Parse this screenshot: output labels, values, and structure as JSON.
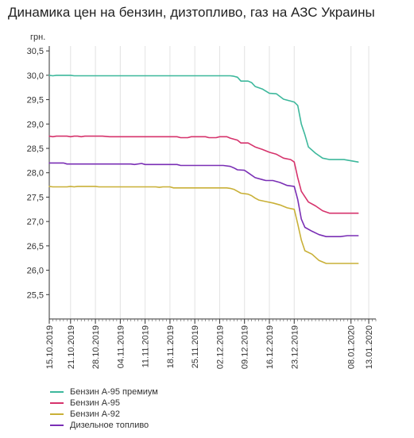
{
  "page": {
    "title": "Динамика цен на бензин, дизтопливо, газ на АЗС Украины"
  },
  "chart_data": {
    "type": "line",
    "title": "Динамика цен на бензин, дизтопливо, газ на АЗС Украины",
    "ylabel": "грн.",
    "xlabel": "",
    "ylim": [
      25.0,
      30.6
    ],
    "yticks": [
      "25,5",
      "26,0",
      "26,5",
      "27,0",
      "27,5",
      "28,0",
      "28,5",
      "29,0",
      "29,5",
      "30,0",
      "30,5"
    ],
    "xlim": [
      "2019-10-15",
      "2020-01-15"
    ],
    "xticks": [
      "15.10.2019",
      "21.10.2019",
      "28.10.2019",
      "04.11.2019",
      "11.11.2019",
      "18.11.2019",
      "25.11.2019",
      "02.12.2019",
      "09.12.2019",
      "16.12.2019",
      "23.12.2019",
      "08.01.2020",
      "13.01.2020"
    ],
    "grid": {
      "vertical": true,
      "horizontal": false
    },
    "legend_position": "bottom-left",
    "series": [
      {
        "name": "Бензин А-95 премиум",
        "color": "#3db89c",
        "points": [
          [
            "2019-10-15",
            30.0
          ],
          [
            "2019-10-16",
            29.99
          ],
          [
            "2019-10-17",
            30.0
          ],
          [
            "2019-10-21",
            30.0
          ],
          [
            "2019-10-22",
            29.99
          ],
          [
            "2019-11-20",
            29.99
          ],
          [
            "2019-12-05",
            29.99
          ],
          [
            "2019-12-06",
            29.98
          ],
          [
            "2019-12-07",
            29.96
          ],
          [
            "2019-12-08",
            29.88
          ],
          [
            "2019-12-10",
            29.88
          ],
          [
            "2019-12-11",
            29.85
          ],
          [
            "2019-12-12",
            29.77
          ],
          [
            "2019-12-14",
            29.72
          ],
          [
            "2019-12-16",
            29.63
          ],
          [
            "2019-12-18",
            29.62
          ],
          [
            "2019-12-20",
            29.51
          ],
          [
            "2019-12-22",
            29.47
          ],
          [
            "2019-12-23",
            29.45
          ],
          [
            "2019-12-24",
            29.38
          ],
          [
            "2019-12-25",
            29.0
          ],
          [
            "2019-12-26",
            28.78
          ],
          [
            "2019-12-27",
            28.53
          ],
          [
            "2019-12-29",
            28.4
          ],
          [
            "2019-12-31",
            28.3
          ],
          [
            "2020-01-02",
            28.27
          ],
          [
            "2020-01-06",
            28.27
          ],
          [
            "2020-01-10",
            28.22
          ]
        ]
      },
      {
        "name": "Бензин А-95",
        "color": "#d6336c",
        "points": [
          [
            "2019-10-15",
            28.75
          ],
          [
            "2019-10-16",
            28.74
          ],
          [
            "2019-10-17",
            28.75
          ],
          [
            "2019-10-20",
            28.75
          ],
          [
            "2019-10-21",
            28.74
          ],
          [
            "2019-10-22",
            28.75
          ],
          [
            "2019-10-23",
            28.75
          ],
          [
            "2019-10-24",
            28.74
          ],
          [
            "2019-10-25",
            28.75
          ],
          [
            "2019-10-30",
            28.75
          ],
          [
            "2019-11-01",
            28.74
          ],
          [
            "2019-11-20",
            28.74
          ],
          [
            "2019-11-21",
            28.72
          ],
          [
            "2019-11-23",
            28.72
          ],
          [
            "2019-11-24",
            28.74
          ],
          [
            "2019-11-28",
            28.74
          ],
          [
            "2019-11-29",
            28.72
          ],
          [
            "2019-12-01",
            28.72
          ],
          [
            "2019-12-02",
            28.74
          ],
          [
            "2019-12-04",
            28.74
          ],
          [
            "2019-12-05",
            28.71
          ],
          [
            "2019-12-07",
            28.67
          ],
          [
            "2019-12-08",
            28.61
          ],
          [
            "2019-12-10",
            28.61
          ],
          [
            "2019-12-12",
            28.53
          ],
          [
            "2019-12-14",
            28.48
          ],
          [
            "2019-12-16",
            28.42
          ],
          [
            "2019-12-18",
            28.38
          ],
          [
            "2019-12-20",
            28.3
          ],
          [
            "2019-12-22",
            28.27
          ],
          [
            "2019-12-23",
            28.22
          ],
          [
            "2019-12-24",
            27.9
          ],
          [
            "2019-12-25",
            27.62
          ],
          [
            "2019-12-27",
            27.4
          ],
          [
            "2019-12-29",
            27.32
          ],
          [
            "2019-12-31",
            27.22
          ],
          [
            "2020-01-02",
            27.17
          ],
          [
            "2020-01-10",
            27.17
          ]
        ]
      },
      {
        "name": "Бензин А-92",
        "color": "#c9b037",
        "points": [
          [
            "2019-10-15",
            27.72
          ],
          [
            "2019-10-16",
            27.71
          ],
          [
            "2019-10-20",
            27.71
          ],
          [
            "2019-10-21",
            27.72
          ],
          [
            "2019-10-22",
            27.71
          ],
          [
            "2019-10-23",
            27.72
          ],
          [
            "2019-10-28",
            27.72
          ],
          [
            "2019-10-29",
            27.71
          ],
          [
            "2019-11-14",
            27.71
          ],
          [
            "2019-11-15",
            27.7
          ],
          [
            "2019-11-16",
            27.71
          ],
          [
            "2019-11-18",
            27.71
          ],
          [
            "2019-11-19",
            27.69
          ],
          [
            "2019-12-04",
            27.69
          ],
          [
            "2019-12-05",
            27.68
          ],
          [
            "2019-12-06",
            27.66
          ],
          [
            "2019-12-07",
            27.62
          ],
          [
            "2019-12-08",
            27.58
          ],
          [
            "2019-12-10",
            27.56
          ],
          [
            "2019-12-11",
            27.53
          ],
          [
            "2019-12-12",
            27.48
          ],
          [
            "2019-12-13",
            27.44
          ],
          [
            "2019-12-15",
            27.41
          ],
          [
            "2019-12-17",
            27.38
          ],
          [
            "2019-12-19",
            27.34
          ],
          [
            "2019-12-21",
            27.28
          ],
          [
            "2019-12-23",
            27.25
          ],
          [
            "2019-12-24",
            26.95
          ],
          [
            "2019-12-25",
            26.62
          ],
          [
            "2019-12-26",
            26.4
          ],
          [
            "2019-12-28",
            26.33
          ],
          [
            "2019-12-30",
            26.2
          ],
          [
            "2020-01-01",
            26.14
          ],
          [
            "2020-01-10",
            26.14
          ]
        ]
      },
      {
        "name": "Дизельное топливо",
        "color": "#7a2fb5",
        "points": [
          [
            "2019-10-15",
            28.2
          ],
          [
            "2019-10-19",
            28.2
          ],
          [
            "2019-10-20",
            28.18
          ],
          [
            "2019-11-07",
            28.18
          ],
          [
            "2019-11-08",
            28.17
          ],
          [
            "2019-11-10",
            28.19
          ],
          [
            "2019-11-11",
            28.17
          ],
          [
            "2019-11-20",
            28.17
          ],
          [
            "2019-11-21",
            28.15
          ],
          [
            "2019-12-03",
            28.15
          ],
          [
            "2019-12-05",
            28.13
          ],
          [
            "2019-12-06",
            28.1
          ],
          [
            "2019-12-07",
            28.06
          ],
          [
            "2019-12-09",
            28.05
          ],
          [
            "2019-12-10",
            28.0
          ],
          [
            "2019-12-12",
            27.9
          ],
          [
            "2019-12-14",
            27.86
          ],
          [
            "2019-12-15",
            27.84
          ],
          [
            "2019-12-17",
            27.84
          ],
          [
            "2019-12-19",
            27.8
          ],
          [
            "2019-12-21",
            27.74
          ],
          [
            "2019-12-23",
            27.72
          ],
          [
            "2019-12-24",
            27.45
          ],
          [
            "2019-12-25",
            27.05
          ],
          [
            "2019-12-26",
            26.88
          ],
          [
            "2019-12-28",
            26.8
          ],
          [
            "2019-12-30",
            26.73
          ],
          [
            "2020-01-01",
            26.69
          ],
          [
            "2020-01-05",
            26.69
          ],
          [
            "2020-01-07",
            26.71
          ],
          [
            "2020-01-10",
            26.71
          ]
        ]
      }
    ]
  }
}
